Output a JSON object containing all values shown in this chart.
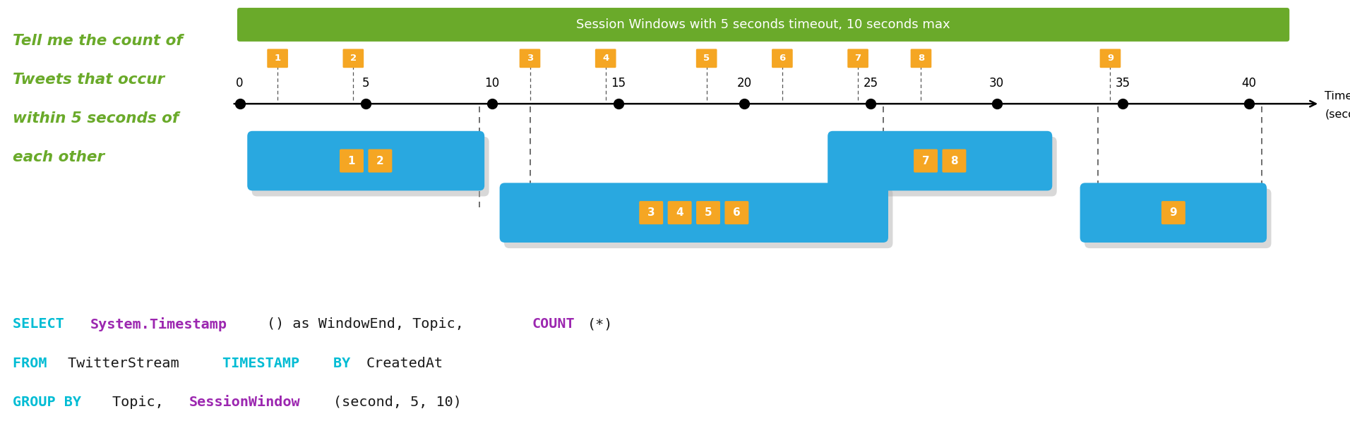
{
  "title": "Session Windows with 5 seconds timeout, 10 seconds max",
  "title_bg": "#6aaa2a",
  "title_color": "white",
  "timeline_ticks": [
    0,
    5,
    10,
    15,
    20,
    25,
    30,
    35,
    40
  ],
  "events": [
    {
      "id": 1,
      "x": 1.5
    },
    {
      "id": 2,
      "x": 4.5
    },
    {
      "id": 3,
      "x": 11.5
    },
    {
      "id": 4,
      "x": 14.5
    },
    {
      "id": 5,
      "x": 18.5
    },
    {
      "id": 6,
      "x": 21.5
    },
    {
      "id": 7,
      "x": 24.5
    },
    {
      "id": 8,
      "x": 27.0
    },
    {
      "id": 9,
      "x": 34.5
    }
  ],
  "windows": [
    {
      "events": [
        1,
        2
      ],
      "x_start": 0.5,
      "x_end": 9.5,
      "row": 0
    },
    {
      "events": [
        3,
        4,
        5,
        6
      ],
      "x_start": 10.5,
      "x_end": 25.5,
      "row": 1
    },
    {
      "events": [
        7,
        8
      ],
      "x_start": 23.5,
      "x_end": 32.0,
      "row": 0
    },
    {
      "events": [
        9
      ],
      "x_start": 33.5,
      "x_end": 40.5,
      "row": 1
    }
  ],
  "dashed_lines_x": [
    9.5,
    11.5,
    25.5,
    34.0,
    40.5
  ],
  "event_color": "#f5a623",
  "window_color": "#29a8e0",
  "left_text_lines": [
    "Tell me the count of",
    "Tweets that occur",
    "within 5 seconds of",
    "each other"
  ],
  "left_text_color": "#6aaa2a",
  "code_lines": [
    [
      [
        "SELECT ",
        "#00bcd4"
      ],
      [
        "System.Timestamp",
        "#9c27b0"
      ],
      [
        "() as WindowEnd, Topic, ",
        "#1a1a1a"
      ],
      [
        "COUNT",
        "#9c27b0"
      ],
      [
        "(*)",
        "#1a1a1a"
      ]
    ],
    [
      [
        "FROM ",
        "#00bcd4"
      ],
      [
        "TwitterStream ",
        "#1a1a1a"
      ],
      [
        "TIMESTAMP ",
        "#00bcd4"
      ],
      [
        "BY ",
        "#00bcd4"
      ],
      [
        "CreatedAt",
        "#1a1a1a"
      ]
    ],
    [
      [
        "GROUP BY ",
        "#00bcd4"
      ],
      [
        "Topic, ",
        "#1a1a1a"
      ],
      [
        "SessionWindow",
        "#9c27b0"
      ],
      [
        "(second, 5, 10)",
        "#1a1a1a"
      ]
    ]
  ],
  "fig_width": 19.12,
  "fig_height": 6.07,
  "bg_color": "white",
  "xmin": -9.5,
  "xmax": 44.0,
  "ymin": -7.0,
  "ymax": 9.5
}
